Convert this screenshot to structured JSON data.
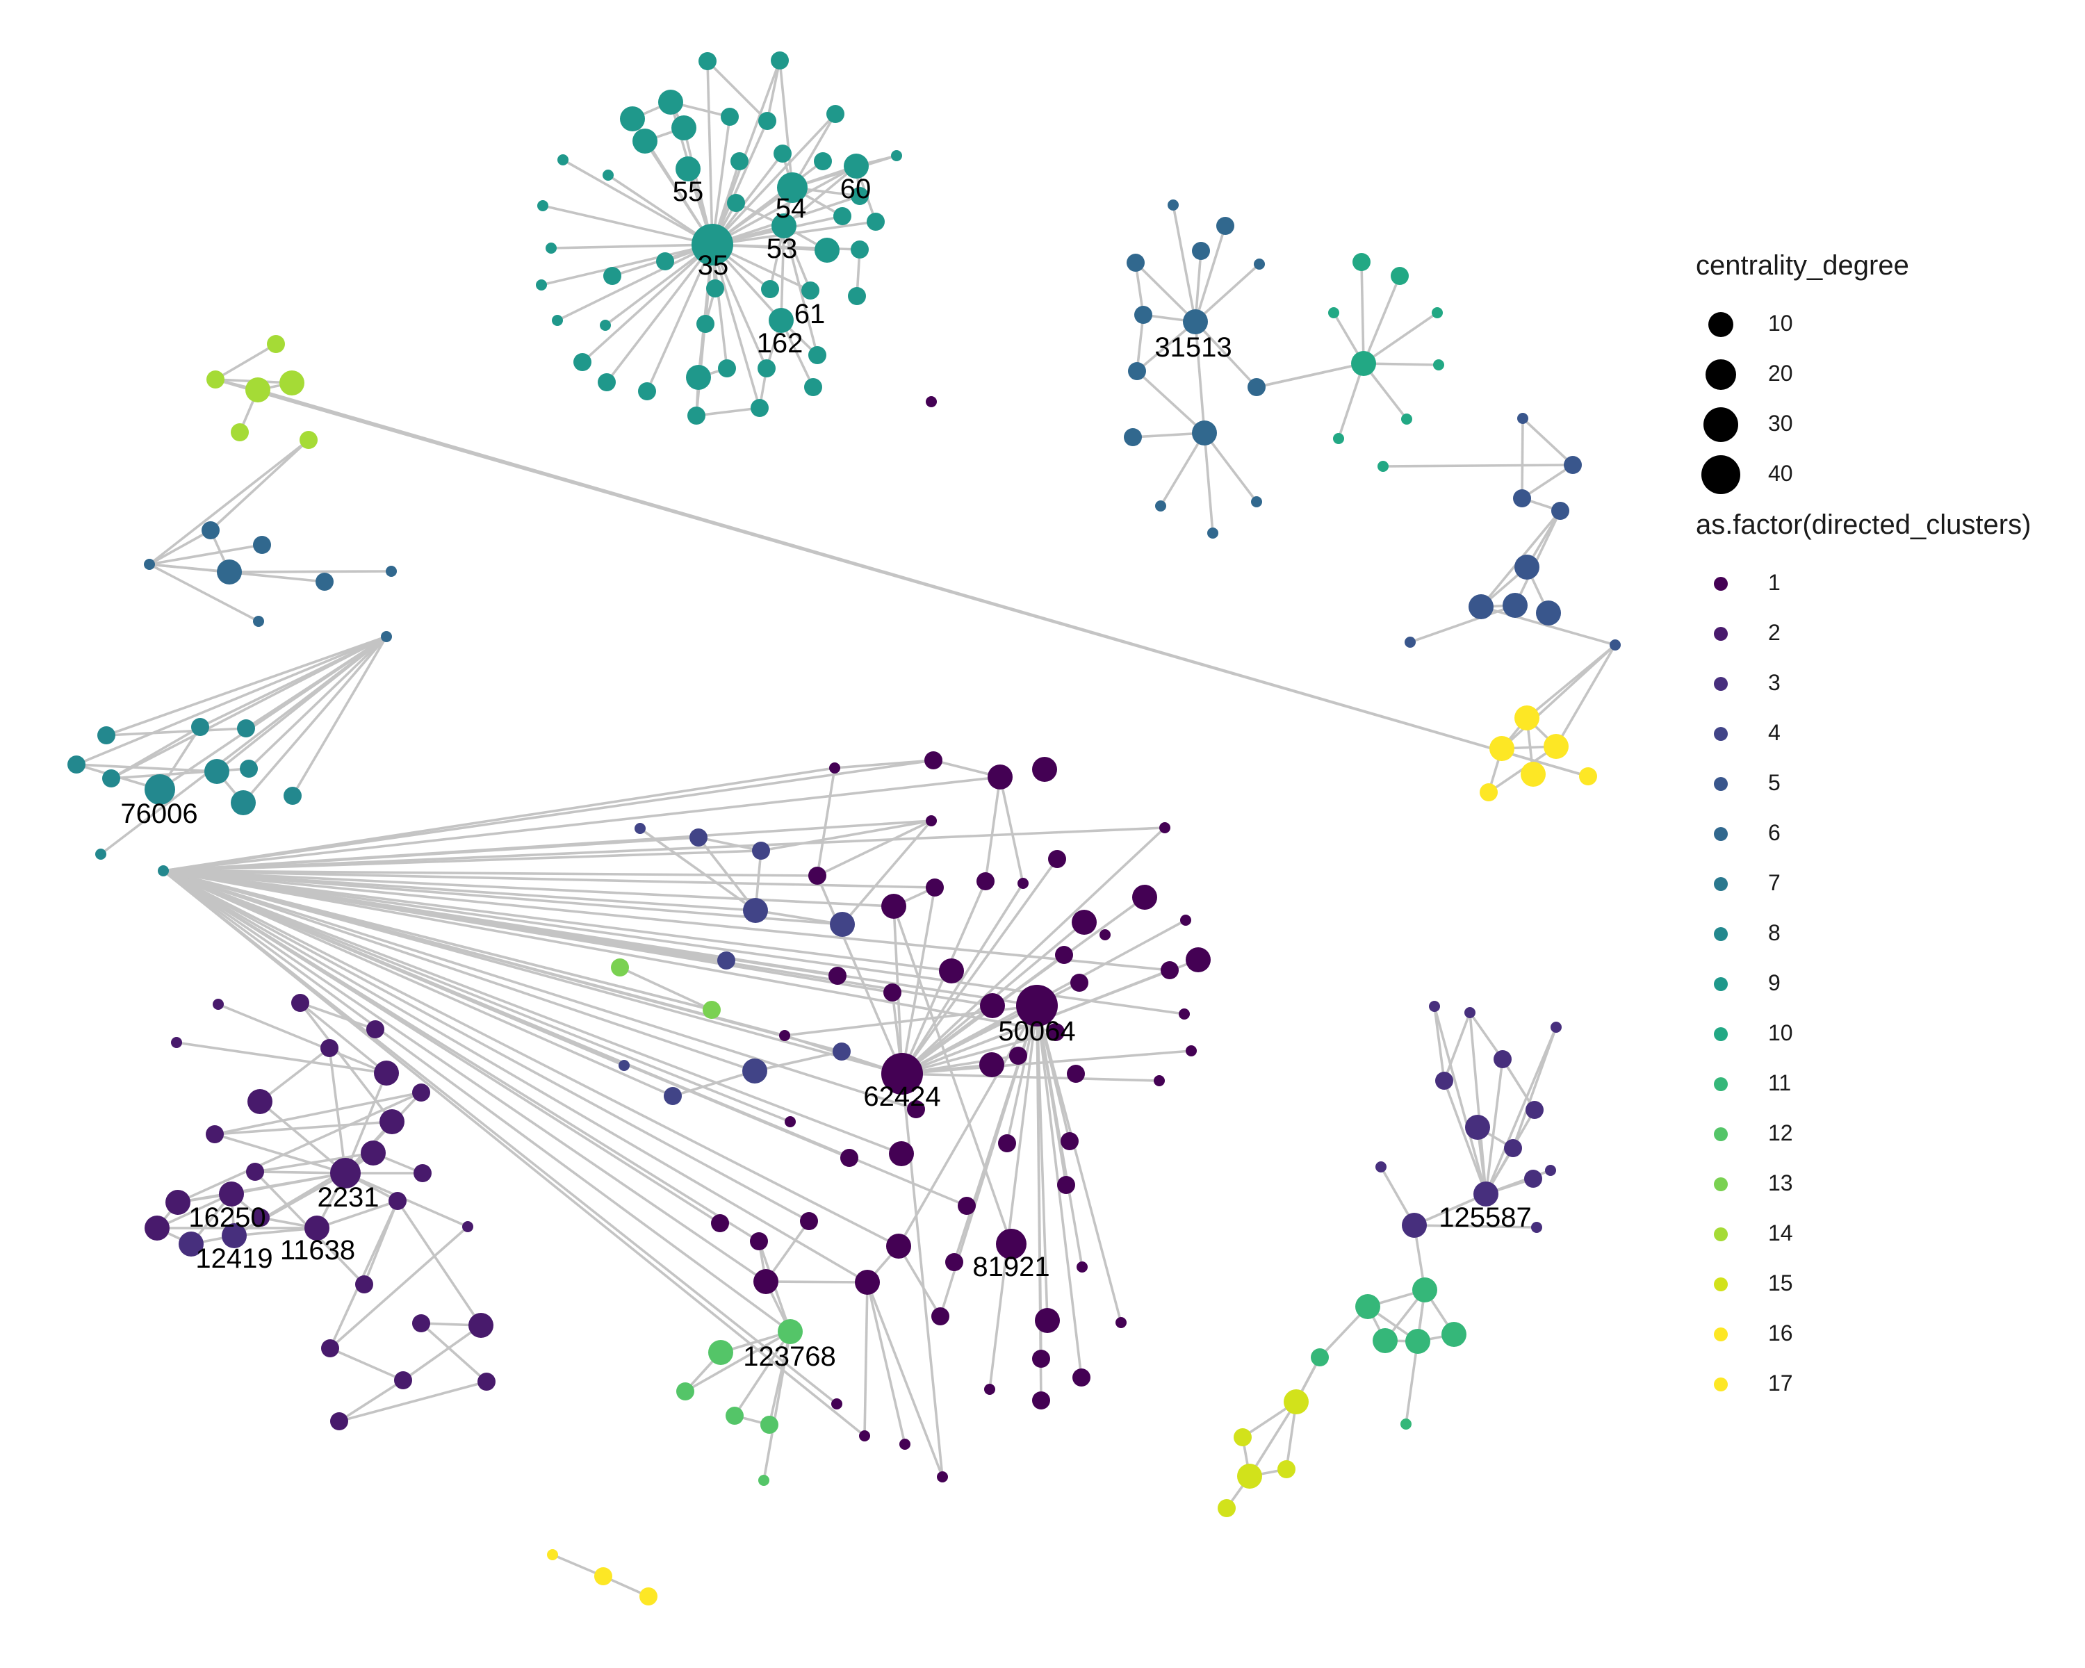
{
  "legend": {
    "size_title": "centrality_degree",
    "size_entries": [
      {
        "label": "10",
        "value": 10
      },
      {
        "label": "20",
        "value": 20
      },
      {
        "label": "30",
        "value": 30
      },
      {
        "label": "40",
        "value": 40
      }
    ],
    "color_title": "as.factor(directed_clusters)",
    "color_entries": [
      {
        "label": "1",
        "color": "#440154"
      },
      {
        "label": "2",
        "color": "#481a6c"
      },
      {
        "label": "3",
        "color": "#472f7d"
      },
      {
        "label": "4",
        "color": "#414487"
      },
      {
        "label": "5",
        "color": "#39568c"
      },
      {
        "label": "6",
        "color": "#31688e"
      },
      {
        "label": "7",
        "color": "#2a788e"
      },
      {
        "label": "8",
        "color": "#23888e"
      },
      {
        "label": "9",
        "color": "#1f988b"
      },
      {
        "label": "10",
        "color": "#22a884"
      },
      {
        "label": "11",
        "color": "#35b779"
      },
      {
        "label": "12",
        "color": "#54c568"
      },
      {
        "label": "13",
        "color": "#7ad151"
      },
      {
        "label": "14",
        "color": "#a5db36"
      },
      {
        "label": "15",
        "color": "#d2e21b"
      },
      {
        "label": "16",
        "color": "#fde725"
      },
      {
        "label": "17",
        "color": "#fde725"
      }
    ]
  },
  "node_labels": [
    "35",
    "53",
    "54",
    "55",
    "60",
    "61",
    "162",
    "31513",
    "76006",
    "50064",
    "62424",
    "81921",
    "123768",
    "2231",
    "16250",
    "12419",
    "11638",
    "125587"
  ]
}
